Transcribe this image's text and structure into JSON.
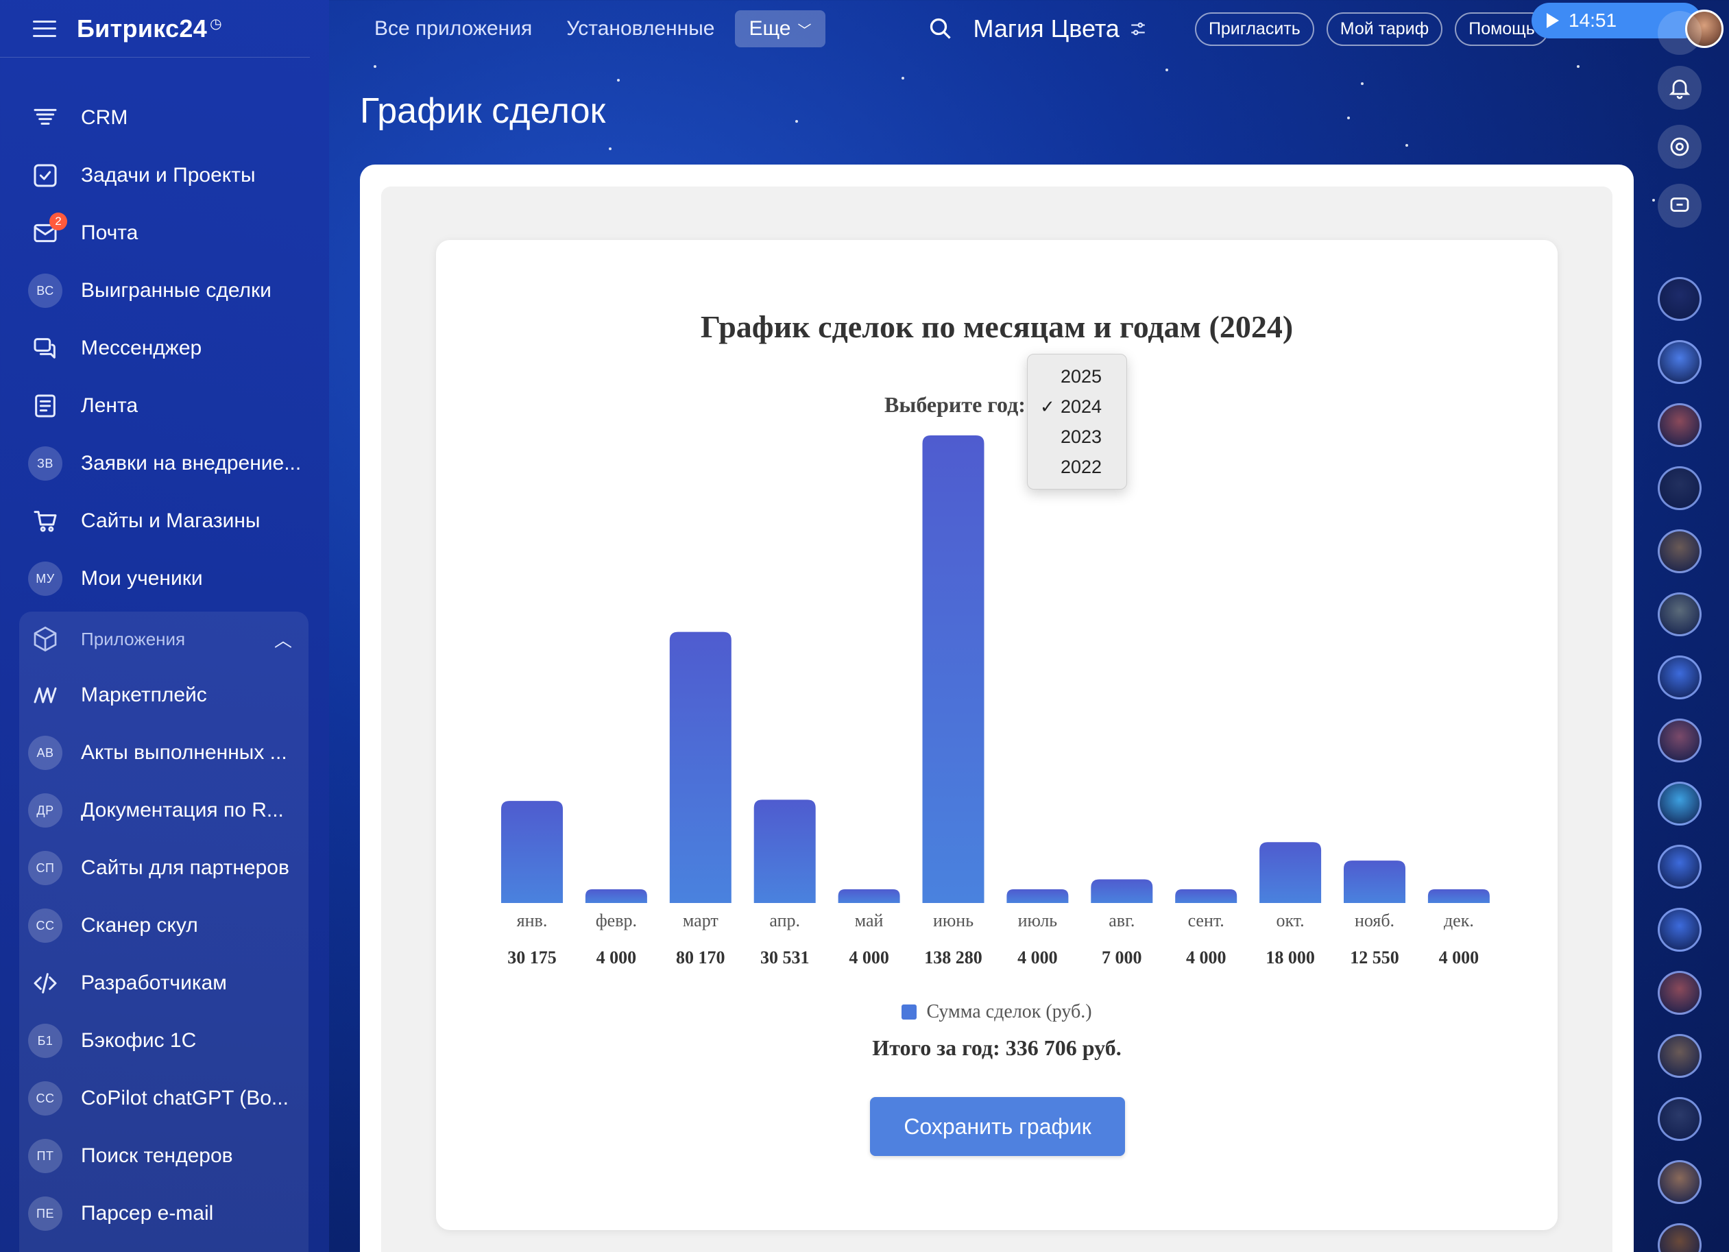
{
  "app": {
    "logo": "Битрикс24",
    "company": "Магия Цвета"
  },
  "topbar": {
    "tabs": [
      "Все приложения",
      "Установленные"
    ],
    "more_label": "Еще",
    "pills": [
      "Пригласить",
      "Мой тариф",
      "Помощь"
    ],
    "time": "14:51"
  },
  "sidebar": {
    "items": [
      {
        "label": "CRM",
        "icon": "crm-filter-icon"
      },
      {
        "label": "Задачи и Проекты",
        "icon": "tasks-check-icon"
      },
      {
        "label": "Почта",
        "icon": "mail-icon",
        "badge": "2"
      },
      {
        "label": "Выигранные сделки",
        "abbr": "ВС"
      },
      {
        "label": "Мессенджер",
        "icon": "messenger-icon"
      },
      {
        "label": "Лента",
        "icon": "feed-icon"
      },
      {
        "label": "Заявки на внедрение...",
        "abbr": "ЗВ"
      },
      {
        "label": "Сайты и Магазины",
        "icon": "cart-icon"
      },
      {
        "label": "Мои ученики",
        "abbr": "МУ"
      }
    ],
    "apps_header": "Приложения",
    "apps": [
      {
        "label": "Маркетплейс",
        "icon": "marketplace-icon"
      },
      {
        "label": "Акты выполненных ...",
        "abbr": "АВ"
      },
      {
        "label": "Документация по R...",
        "abbr": "ДР"
      },
      {
        "label": "Сайты для партнеров",
        "abbr": "СП"
      },
      {
        "label": "Сканер скул",
        "abbr": "СС"
      },
      {
        "label": "Разработчикам",
        "icon": "code-icon"
      },
      {
        "label": "Бэкофис 1С",
        "abbr": "Б1"
      },
      {
        "label": "CoPilot chatGPT (Bo...",
        "abbr": "CC"
      },
      {
        "label": "Поиск тендеров",
        "abbr": "ПТ"
      },
      {
        "label": "Парсер e-mail",
        "abbr": "ПЕ"
      }
    ]
  },
  "page": {
    "title": "График сделок"
  },
  "chart": {
    "year_label": "Выберите год:",
    "year_options": [
      "2025",
      "2024",
      "2023",
      "2022"
    ],
    "selected_year": "2024",
    "save_label": "Сохранить график",
    "total": "Итого за год: 336 706 руб.",
    "bar_color": "#4a6fd8"
  },
  "chart_data": {
    "type": "bar",
    "title": "График сделок по месяцам и годам (2024)",
    "categories": [
      "янв.",
      "февр.",
      "март",
      "апр.",
      "май",
      "июнь",
      "июль",
      "авг.",
      "сент.",
      "окт.",
      "нояб.",
      "дек."
    ],
    "series": [
      {
        "name": "Сумма сделок (руб.)",
        "values": [
          30175,
          4000,
          80170,
          30531,
          4000,
          138280,
          4000,
          7000,
          4000,
          18000,
          12550,
          4000
        ]
      }
    ],
    "value_labels": [
      "30 175",
      "4 000",
      "80 170",
      "30 531",
      "4 000",
      "138 280",
      "4 000",
      "7 000",
      "4 000",
      "18 000",
      "12 550",
      "4 000"
    ],
    "ylim": [
      0,
      138280
    ],
    "grid": false,
    "legend": "bottom"
  }
}
